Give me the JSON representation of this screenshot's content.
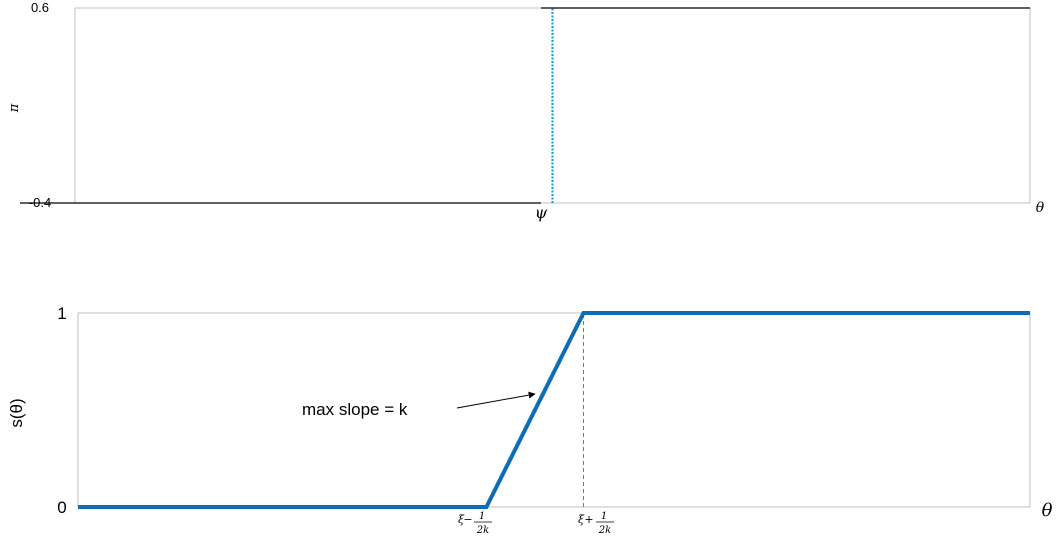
{
  "chart_data": [
    {
      "type": "line",
      "ylabel": "π",
      "xlabel": "θ",
      "yticks": [
        "0.6",
        "-0.4"
      ],
      "ylim": [
        -0.4,
        0.6
      ],
      "xticks": [
        "ψ"
      ],
      "grid": false,
      "colors": {
        "series": "#1aa3e0",
        "axes": "#000000"
      },
      "series": [
        {
          "style": "dotted",
          "x": [
            0.5,
            0.5
          ],
          "y": [
            -0.4,
            0.6
          ]
        }
      ]
    },
    {
      "type": "line",
      "ylabel": "s(θ)",
      "xlabel": "θ",
      "yticks": [
        "1",
        "0"
      ],
      "ylim": [
        0,
        1
      ],
      "xticks": [
        {
          "sym": "ξ",
          "op": "−",
          "num": "1",
          "den": "2k"
        },
        {
          "sym": "ξ",
          "op": "+",
          "num": "1",
          "den": "2k"
        }
      ],
      "grid": false,
      "colors": {
        "series": "#0d6cb5",
        "guide": "#777777"
      },
      "series": [
        {
          "x": [
            0,
            0.429,
            0.531,
            1
          ],
          "y": [
            0,
            0,
            1,
            1
          ]
        }
      ],
      "guides": [
        {
          "x": 0.531,
          "y": [
            0,
            1
          ],
          "style": "dashed"
        }
      ],
      "annotation": {
        "text": "max slope = k",
        "x": 0.48,
        "y": 0.5
      }
    }
  ]
}
